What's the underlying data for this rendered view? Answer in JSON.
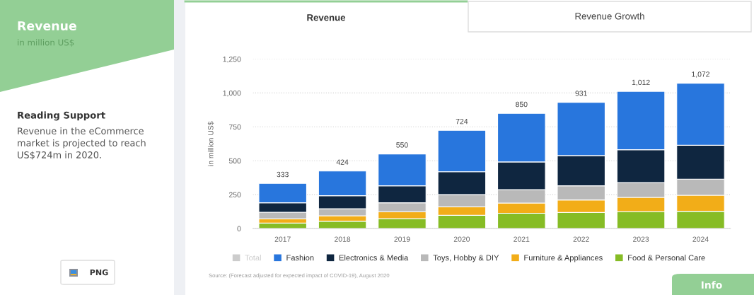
{
  "chart_data": {
    "type": "bar",
    "title": "Revenue",
    "subtitle": "in million US$",
    "ylabel": "in million US$",
    "categories": [
      "2017",
      "2018",
      "2019",
      "2020",
      "2021",
      "2022",
      "2023",
      "2024"
    ],
    "stacked": true,
    "series": [
      {
        "name": "Food & Personal Care",
        "color": "#86bc25",
        "values": [
          40,
          54,
          73,
          97,
          112,
          118,
          125,
          127
        ]
      },
      {
        "name": "Furniture & Appliances",
        "color": "#f2ad18",
        "values": [
          32,
          40,
          51,
          63,
          76,
          93,
          105,
          118
        ]
      },
      {
        "name": "Toys, Hobby & DIY",
        "color": "#b9b9b9",
        "values": [
          48,
          52,
          66,
          90,
          99,
          104,
          109,
          119
        ]
      },
      {
        "name": "Electronics & Media",
        "color": "#0f2640",
        "values": [
          70,
          96,
          125,
          169,
          204,
          223,
          242,
          250
        ]
      },
      {
        "name": "Fashion",
        "color": "#2876dd",
        "values": [
          143,
          182,
          235,
          305,
          359,
          393,
          431,
          458
        ]
      },
      {
        "name": "Total",
        "color": "#cccccc",
        "values": [
          null,
          null,
          null,
          null,
          null,
          null,
          null,
          null
        ]
      }
    ],
    "totals": [
      "333",
      "424",
      "550",
      "724",
      "850",
      "931",
      "1,012",
      "1,072"
    ],
    "ylim": [
      0,
      1250
    ],
    "yticks": [
      0,
      250,
      500,
      750,
      {
        "value": 1000,
        "label": "1,000"
      },
      {
        "value": 1250,
        "label": "1,250"
      }
    ],
    "grid": "y",
    "legend": "bottom",
    "annotations": [
      "Revenue",
      "Revenue Growth",
      "Reading Support",
      "Revenue in the eCommerce\nmarket is projected to reach\nUS$724m in 2020.",
      "PNG",
      "Info",
      "Source: (Forecast adjusted for expected impact of COVID-19), August 2020"
    ]
  }
}
